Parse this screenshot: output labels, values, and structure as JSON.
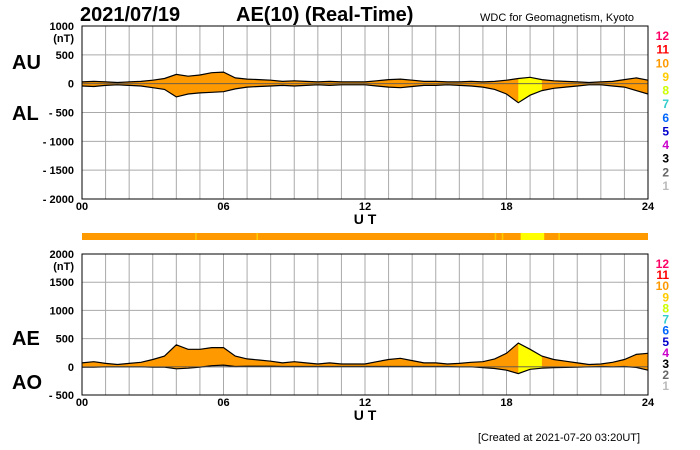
{
  "header": {
    "date": "2021/07/19",
    "title": "AE(10) (Real-Time)",
    "source": "WDC for Geomagnetism, Kyoto"
  },
  "footer": {
    "created": "[Created at 2021-07-20 03:20UT]"
  },
  "colors": {
    "fill_main": "#ff9900",
    "fill_alt": "#ffcc00",
    "fill_yellow": "#ffff00",
    "grid": "#aaaaaa",
    "line": "#000000"
  },
  "station_scale": [
    {
      "n": "12",
      "color": "#ff0066"
    },
    {
      "n": "11",
      "color": "#ff0000"
    },
    {
      "n": "10",
      "color": "#ff9900"
    },
    {
      "n": "9",
      "color": "#ffcc00"
    },
    {
      "n": "8",
      "color": "#ccff00"
    },
    {
      "n": "7",
      "color": "#33cccc"
    },
    {
      "n": "6",
      "color": "#0066ff"
    },
    {
      "n": "5",
      "color": "#0000cc"
    },
    {
      "n": "4",
      "color": "#cc00cc"
    },
    {
      "n": "3",
      "color": "#000000"
    },
    {
      "n": "2",
      "color": "#666666"
    },
    {
      "n": "1",
      "color": "#bbbbbb"
    }
  ],
  "chart_data": [
    {
      "type": "area",
      "series_labels": [
        "AU",
        "AL"
      ],
      "ylabel": "(nT)",
      "xlabel": "U T",
      "xlim": [
        0,
        24
      ],
      "ylim": [
        -2000,
        1000
      ],
      "yticks": [
        1000,
        500,
        0,
        -500,
        -1000,
        -1500,
        -2000
      ],
      "ytick_labels": [
        "1000",
        "500",
        "0",
        "- 500",
        "- 1000",
        "- 1500",
        "- 2000"
      ],
      "xtick_labels": [
        "00",
        "06",
        "12",
        "18",
        "24"
      ],
      "grid": true,
      "x": [
        0,
        0.5,
        1,
        1.5,
        2,
        2.5,
        3,
        3.5,
        4,
        4.5,
        5,
        5.5,
        6,
        6.5,
        7,
        7.5,
        8,
        8.5,
        9,
        9.5,
        10,
        10.5,
        11,
        11.5,
        12,
        12.5,
        13,
        13.5,
        14,
        14.5,
        15,
        15.5,
        16,
        16.5,
        17,
        17.5,
        18,
        18.5,
        19,
        19.5,
        20,
        20.5,
        21,
        21.5,
        22,
        22.5,
        23,
        23.5,
        24
      ],
      "series": [
        {
          "name": "AU",
          "values": [
            30,
            40,
            30,
            20,
            30,
            40,
            60,
            90,
            160,
            130,
            150,
            190,
            200,
            100,
            80,
            70,
            60,
            40,
            50,
            40,
            30,
            40,
            30,
            30,
            30,
            50,
            70,
            80,
            60,
            40,
            40,
            30,
            30,
            40,
            30,
            40,
            60,
            90,
            110,
            70,
            50,
            40,
            30,
            20,
            30,
            40,
            70,
            100,
            60
          ]
        },
        {
          "name": "AL",
          "values": [
            -40,
            -50,
            -30,
            -20,
            -30,
            -40,
            -70,
            -100,
            -230,
            -180,
            -160,
            -150,
            -140,
            -90,
            -60,
            -50,
            -40,
            -30,
            -40,
            -30,
            -20,
            -30,
            -20,
            -20,
            -20,
            -40,
            -60,
            -70,
            -50,
            -30,
            -30,
            -20,
            -30,
            -40,
            -60,
            -100,
            -180,
            -330,
            -200,
            -120,
            -80,
            -60,
            -40,
            -20,
            -20,
            -40,
            -60,
            -120,
            -180
          ]
        }
      ]
    },
    {
      "type": "area",
      "series_labels": [
        "AE",
        "AO"
      ],
      "ylabel": "(nT)",
      "xlabel": "U T",
      "xlim": [
        0,
        24
      ],
      "ylim": [
        -500,
        2000
      ],
      "yticks": [
        2000,
        1500,
        1000,
        500,
        0,
        -500
      ],
      "ytick_labels": [
        "2000",
        "1500",
        "1000",
        "500",
        "0",
        "- 500"
      ],
      "xtick_labels": [
        "00",
        "06",
        "12",
        "18",
        "24"
      ],
      "grid": true,
      "x": [
        0,
        0.5,
        1,
        1.5,
        2,
        2.5,
        3,
        3.5,
        4,
        4.5,
        5,
        5.5,
        6,
        6.5,
        7,
        7.5,
        8,
        8.5,
        9,
        9.5,
        10,
        10.5,
        11,
        11.5,
        12,
        12.5,
        13,
        13.5,
        14,
        14.5,
        15,
        15.5,
        16,
        16.5,
        17,
        17.5,
        18,
        18.5,
        19,
        19.5,
        20,
        20.5,
        21,
        21.5,
        22,
        22.5,
        23,
        23.5,
        24
      ],
      "series": [
        {
          "name": "AE",
          "values": [
            70,
            90,
            60,
            40,
            60,
            80,
            130,
            190,
            390,
            310,
            310,
            340,
            340,
            190,
            140,
            120,
            100,
            70,
            90,
            70,
            50,
            70,
            50,
            50,
            50,
            90,
            130,
            150,
            110,
            70,
            70,
            50,
            60,
            80,
            90,
            140,
            240,
            420,
            310,
            190,
            130,
            100,
            70,
            40,
            50,
            80,
            130,
            220,
            240
          ]
        },
        {
          "name": "AO",
          "values": [
            -5,
            -5,
            0,
            0,
            0,
            0,
            -5,
            -5,
            -35,
            -25,
            -5,
            20,
            30,
            5,
            10,
            10,
            10,
            5,
            5,
            5,
            5,
            5,
            5,
            5,
            5,
            5,
            5,
            5,
            5,
            5,
            5,
            5,
            0,
            0,
            -15,
            -30,
            -60,
            -120,
            -45,
            -25,
            -15,
            -10,
            -5,
            0,
            5,
            0,
            5,
            -10,
            -60
          ]
        }
      ]
    }
  ]
}
